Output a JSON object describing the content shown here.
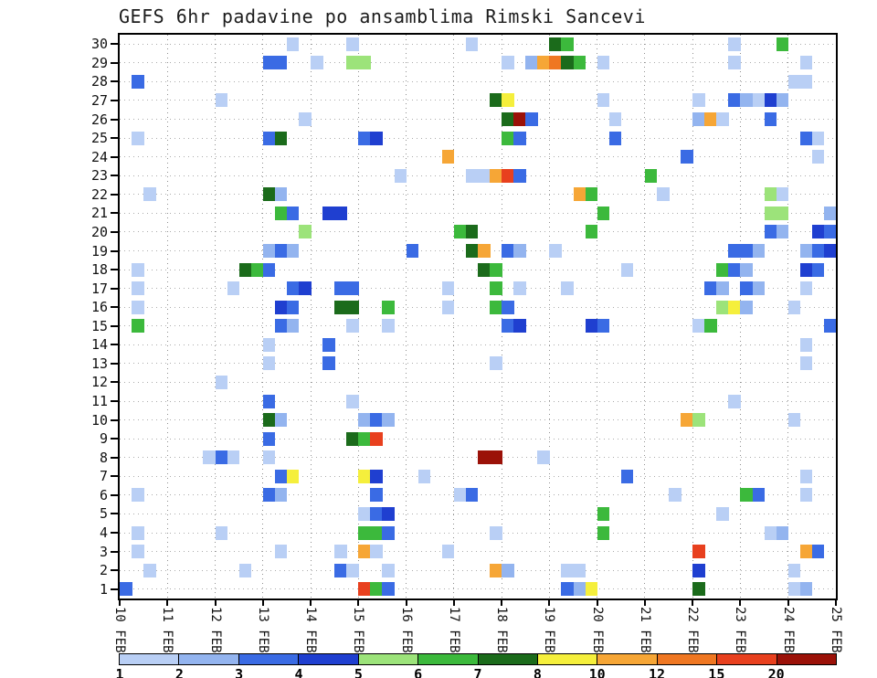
{
  "title": "GEFS 6hr padavine po ansamblima Rimski Sancevi",
  "chart_data": {
    "type": "heatmap",
    "title": "GEFS 6hr padavine po ansamblima Rimski Sancevi",
    "x_labels": [
      "10 FEB",
      "11 FEB",
      "12 FEB",
      "13 FEB",
      "14 FEB",
      "15 FEB",
      "16 FEB",
      "17 FEB",
      "18 FEB",
      "19 FEB",
      "20 FEB",
      "21 FEB",
      "22 FEB",
      "23 FEB",
      "24 FEB",
      "25 FEB"
    ],
    "steps_per_day": 4,
    "total_steps": 60,
    "y_labels": [
      "30",
      "29",
      "28",
      "27",
      "26",
      "25",
      "24",
      "23",
      "22",
      "21",
      "20",
      "19",
      "18",
      "17",
      "16",
      "15",
      "14",
      "13",
      "12",
      "11",
      "10",
      "9",
      "8",
      "7",
      "6",
      "5",
      "4",
      "3",
      "2",
      "1"
    ],
    "legend": {
      "position": "bottom",
      "thresholds": [
        1,
        2,
        3,
        4,
        5,
        6,
        7,
        8,
        10,
        12,
        15,
        20
      ],
      "palette": [
        "#b9cff5",
        "#93b4ef",
        "#3a6be4",
        "#1f3fd0",
        "#9ce37a",
        "#3cb93c",
        "#1b6b1b",
        "#f5ef3c",
        "#f6a636",
        "#ef7722",
        "#e8401e",
        "#9b1108"
      ]
    },
    "cells": [
      [
        30,
        14,
        1
      ],
      [
        30,
        19,
        1
      ],
      [
        30,
        29,
        1
      ],
      [
        30,
        36,
        7
      ],
      [
        30,
        37,
        6
      ],
      [
        30,
        51,
        1
      ],
      [
        30,
        55,
        6
      ],
      [
        29,
        12,
        3
      ],
      [
        29,
        13,
        3
      ],
      [
        29,
        16,
        1
      ],
      [
        29,
        19,
        5
      ],
      [
        29,
        20,
        5
      ],
      [
        29,
        32,
        1
      ],
      [
        29,
        34,
        2
      ],
      [
        29,
        35,
        10
      ],
      [
        29,
        36,
        12
      ],
      [
        29,
        37,
        7
      ],
      [
        29,
        38,
        6
      ],
      [
        29,
        40,
        1
      ],
      [
        29,
        51,
        1
      ],
      [
        29,
        57,
        1
      ],
      [
        28,
        1,
        3
      ],
      [
        28,
        56,
        1
      ],
      [
        28,
        57,
        1
      ],
      [
        27,
        8,
        1
      ],
      [
        27,
        31,
        7
      ],
      [
        27,
        32,
        8
      ],
      [
        27,
        40,
        1
      ],
      [
        27,
        48,
        1
      ],
      [
        27,
        51,
        3
      ],
      [
        27,
        52,
        2
      ],
      [
        27,
        53,
        1
      ],
      [
        27,
        54,
        4
      ],
      [
        27,
        55,
        2
      ],
      [
        26,
        15,
        1
      ],
      [
        26,
        32,
        7
      ],
      [
        26,
        33,
        20
      ],
      [
        26,
        34,
        3
      ],
      [
        26,
        41,
        1
      ],
      [
        26,
        48,
        2
      ],
      [
        26,
        49,
        10
      ],
      [
        26,
        50,
        1
      ],
      [
        26,
        54,
        3
      ],
      [
        25,
        1,
        1
      ],
      [
        25,
        12,
        3
      ],
      [
        25,
        13,
        7
      ],
      [
        25,
        20,
        3
      ],
      [
        25,
        21,
        4
      ],
      [
        25,
        32,
        6
      ],
      [
        25,
        33,
        3
      ],
      [
        25,
        41,
        3
      ],
      [
        25,
        57,
        3
      ],
      [
        25,
        58,
        1
      ],
      [
        24,
        27,
        10
      ],
      [
        24,
        47,
        3
      ],
      [
        24,
        58,
        1
      ],
      [
        23,
        23,
        1
      ],
      [
        23,
        29,
        1
      ],
      [
        23,
        30,
        1
      ],
      [
        23,
        31,
        10
      ],
      [
        23,
        32,
        15
      ],
      [
        23,
        33,
        3
      ],
      [
        23,
        44,
        6
      ],
      [
        22,
        2,
        1
      ],
      [
        22,
        12,
        7
      ],
      [
        22,
        13,
        2
      ],
      [
        22,
        38,
        10
      ],
      [
        22,
        39,
        6
      ],
      [
        22,
        45,
        1
      ],
      [
        22,
        54,
        5
      ],
      [
        22,
        55,
        1
      ],
      [
        21,
        13,
        6
      ],
      [
        21,
        14,
        3
      ],
      [
        21,
        17,
        4
      ],
      [
        21,
        18,
        4
      ],
      [
        21,
        40,
        6
      ],
      [
        21,
        54,
        5
      ],
      [
        21,
        55,
        5
      ],
      [
        21,
        59,
        2
      ],
      [
        20,
        15,
        5
      ],
      [
        20,
        28,
        6
      ],
      [
        20,
        29,
        7
      ],
      [
        20,
        39,
        6
      ],
      [
        20,
        54,
        3
      ],
      [
        20,
        55,
        2
      ],
      [
        20,
        58,
        4
      ],
      [
        20,
        59,
        3
      ],
      [
        19,
        12,
        2
      ],
      [
        19,
        13,
        3
      ],
      [
        19,
        14,
        2
      ],
      [
        19,
        24,
        3
      ],
      [
        19,
        29,
        7
      ],
      [
        19,
        30,
        10
      ],
      [
        19,
        32,
        3
      ],
      [
        19,
        33,
        2
      ],
      [
        19,
        36,
        1
      ],
      [
        19,
        51,
        3
      ],
      [
        19,
        52,
        3
      ],
      [
        19,
        53,
        2
      ],
      [
        19,
        57,
        2
      ],
      [
        19,
        58,
        3
      ],
      [
        19,
        59,
        4
      ],
      [
        18,
        1,
        1
      ],
      [
        18,
        10,
        7
      ],
      [
        18,
        11,
        6
      ],
      [
        18,
        12,
        3
      ],
      [
        18,
        30,
        7
      ],
      [
        18,
        31,
        6
      ],
      [
        18,
        42,
        1
      ],
      [
        18,
        50,
        6
      ],
      [
        18,
        51,
        3
      ],
      [
        18,
        52,
        2
      ],
      [
        18,
        57,
        4
      ],
      [
        18,
        58,
        3
      ],
      [
        17,
        1,
        1
      ],
      [
        17,
        9,
        1
      ],
      [
        17,
        14,
        3
      ],
      [
        17,
        15,
        4
      ],
      [
        17,
        18,
        3
      ],
      [
        17,
        19,
        3
      ],
      [
        17,
        27,
        1
      ],
      [
        17,
        31,
        6
      ],
      [
        17,
        33,
        1
      ],
      [
        17,
        37,
        1
      ],
      [
        17,
        49,
        3
      ],
      [
        17,
        50,
        2
      ],
      [
        17,
        52,
        3
      ],
      [
        17,
        53,
        2
      ],
      [
        17,
        57,
        1
      ],
      [
        16,
        1,
        1
      ],
      [
        16,
        13,
        4
      ],
      [
        16,
        14,
        3
      ],
      [
        16,
        18,
        7
      ],
      [
        16,
        19,
        7
      ],
      [
        16,
        22,
        6
      ],
      [
        16,
        27,
        1
      ],
      [
        16,
        31,
        6
      ],
      [
        16,
        32,
        3
      ],
      [
        16,
        50,
        5
      ],
      [
        16,
        51,
        8
      ],
      [
        16,
        52,
        2
      ],
      [
        16,
        56,
        1
      ],
      [
        15,
        1,
        6
      ],
      [
        15,
        13,
        3
      ],
      [
        15,
        14,
        2
      ],
      [
        15,
        19,
        1
      ],
      [
        15,
        22,
        1
      ],
      [
        15,
        32,
        3
      ],
      [
        15,
        33,
        4
      ],
      [
        15,
        39,
        4
      ],
      [
        15,
        40,
        3
      ],
      [
        15,
        48,
        1
      ],
      [
        15,
        49,
        6
      ],
      [
        15,
        59,
        3
      ],
      [
        14,
        12,
        1
      ],
      [
        14,
        17,
        3
      ],
      [
        14,
        57,
        1
      ],
      [
        13,
        12,
        1
      ],
      [
        13,
        17,
        3
      ],
      [
        13,
        31,
        1
      ],
      [
        13,
        57,
        1
      ],
      [
        12,
        8,
        1
      ],
      [
        11,
        12,
        3
      ],
      [
        11,
        19,
        1
      ],
      [
        11,
        51,
        1
      ],
      [
        10,
        12,
        7
      ],
      [
        10,
        13,
        2
      ],
      [
        10,
        20,
        2
      ],
      [
        10,
        21,
        3
      ],
      [
        10,
        22,
        2
      ],
      [
        10,
        47,
        10
      ],
      [
        10,
        48,
        5
      ],
      [
        10,
        56,
        1
      ],
      [
        9,
        12,
        3
      ],
      [
        9,
        19,
        7
      ],
      [
        9,
        20,
        6
      ],
      [
        9,
        21,
        15
      ],
      [
        8,
        7,
        1
      ],
      [
        8,
        8,
        3
      ],
      [
        8,
        9,
        1
      ],
      [
        8,
        12,
        1
      ],
      [
        8,
        30,
        20
      ],
      [
        8,
        31,
        20
      ],
      [
        8,
        35,
        1
      ],
      [
        7,
        13,
        3
      ],
      [
        7,
        14,
        8
      ],
      [
        7,
        20,
        8
      ],
      [
        7,
        21,
        4
      ],
      [
        7,
        25,
        1
      ],
      [
        7,
        42,
        3
      ],
      [
        7,
        57,
        1
      ],
      [
        6,
        1,
        1
      ],
      [
        6,
        12,
        3
      ],
      [
        6,
        13,
        2
      ],
      [
        6,
        21,
        3
      ],
      [
        6,
        28,
        1
      ],
      [
        6,
        29,
        3
      ],
      [
        6,
        46,
        1
      ],
      [
        6,
        52,
        6
      ],
      [
        6,
        53,
        3
      ],
      [
        6,
        57,
        1
      ],
      [
        5,
        20,
        1
      ],
      [
        5,
        21,
        3
      ],
      [
        5,
        22,
        4
      ],
      [
        5,
        40,
        6
      ],
      [
        5,
        50,
        1
      ],
      [
        4,
        1,
        1
      ],
      [
        4,
        8,
        1
      ],
      [
        4,
        20,
        6
      ],
      [
        4,
        21,
        6
      ],
      [
        4,
        22,
        3
      ],
      [
        4,
        31,
        1
      ],
      [
        4,
        40,
        6
      ],
      [
        4,
        54,
        1
      ],
      [
        4,
        55,
        2
      ],
      [
        3,
        1,
        1
      ],
      [
        3,
        13,
        1
      ],
      [
        3,
        18,
        1
      ],
      [
        3,
        20,
        10
      ],
      [
        3,
        21,
        1
      ],
      [
        3,
        27,
        1
      ],
      [
        3,
        48,
        15
      ],
      [
        3,
        57,
        10
      ],
      [
        3,
        58,
        3
      ],
      [
        2,
        2,
        1
      ],
      [
        2,
        10,
        1
      ],
      [
        2,
        18,
        3
      ],
      [
        2,
        19,
        1
      ],
      [
        2,
        22,
        1
      ],
      [
        2,
        31,
        10
      ],
      [
        2,
        32,
        2
      ],
      [
        2,
        37,
        1
      ],
      [
        2,
        38,
        1
      ],
      [
        2,
        48,
        4
      ],
      [
        2,
        56,
        1
      ],
      [
        1,
        0,
        3
      ],
      [
        1,
        20,
        15
      ],
      [
        1,
        21,
        6
      ],
      [
        1,
        22,
        3
      ],
      [
        1,
        37,
        3
      ],
      [
        1,
        38,
        2
      ],
      [
        1,
        39,
        8
      ],
      [
        1,
        48,
        7
      ],
      [
        1,
        56,
        1
      ],
      [
        1,
        57,
        2
      ]
    ]
  }
}
